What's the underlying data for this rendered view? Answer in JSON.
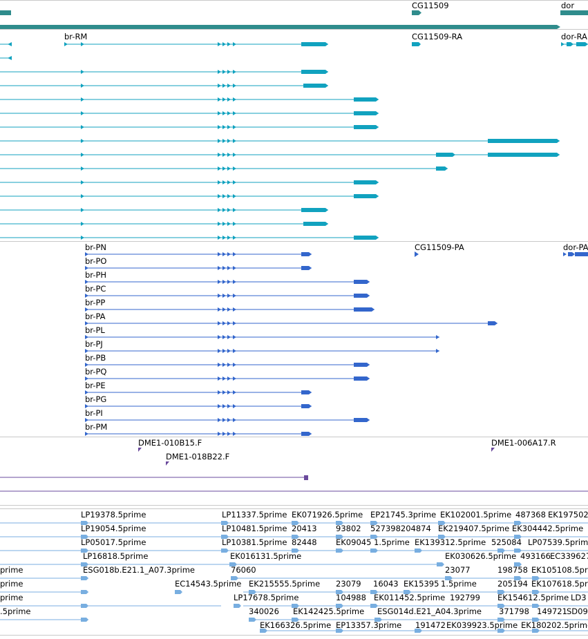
{
  "colors": {
    "gene": "#2f8c8c",
    "transcript_rna": "#11a2bf",
    "transcript_protein": "#3366cc",
    "oligo": "#6a4a9c",
    "est": "#78aee0",
    "separator": "#c8c8c8"
  },
  "tracks": {
    "genes": {
      "labels": {
        "cg11509": "CG11509",
        "dor": "dor"
      }
    },
    "transcripts": {
      "labels": {
        "br_rm": "br-RM",
        "cg11509_ra": "CG11509-RA",
        "dor_ra": "dor-RA"
      }
    },
    "proteins": {
      "labels": [
        "br-PN",
        "br-PO",
        "br-PH",
        "br-PC",
        "br-PP",
        "br-PA",
        "br-PL",
        "br-PJ",
        "br-PB",
        "br-PQ",
        "br-PE",
        "br-PG",
        "br-PI",
        "br-PM"
      ],
      "cg11509_pa": "CG11509-PA",
      "dor_pa": "dor-PA"
    },
    "oligos": {
      "labels": {
        "dme1_010b15": "DME1-010B15.F",
        "dme1_018b22": "DME1-018B22.F",
        "dme1_006a17": "DME1-006A17.R"
      }
    },
    "ests": {
      "labels": [
        "LP19378.5prime",
        "LP11337.5prime",
        "EK071926.5prime",
        "EP21745.3prime",
        "EK102001.5prime",
        "487368",
        "EK197502",
        "LP19054.5prime",
        "LP10481.5prime",
        "20413",
        "93802",
        "527398204874",
        "EK219407.5prime",
        "EK304442.5prime",
        "LP05017.5prime",
        "LP10381.5prime",
        "82448",
        "EK09045",
        "1.5prime",
        "EK139312.5prime",
        "525084",
        "LP07539.5prime",
        "LP16818.5prime",
        "EK016131.5prime",
        "EK030626.5prime",
        "493166",
        "EC339627",
        "prime",
        "ESG018b.E21.1_A07.3prime",
        "76060",
        "23077",
        "198758",
        "EK105108.5prime",
        "prime",
        "EC14543.5prime",
        "EK215555.5prime",
        "23079",
        "16043",
        "EK15395",
        "1.5prime",
        "205194",
        "EK107618.5prime",
        "prime",
        "LP17678.5prime",
        "104988",
        "EK011452.5prime",
        "192799",
        "EK154612.5prime",
        "LD3",
        ".5prime",
        "340026",
        "EK142425.5prime",
        "ESG014d.E21_A04.3prime",
        "371798",
        "149721",
        "SD09",
        "EK166326.5prime",
        "EP13357.3prime",
        "191472",
        "EK039923.5prime",
        "EK180202.5prime"
      ]
    }
  }
}
